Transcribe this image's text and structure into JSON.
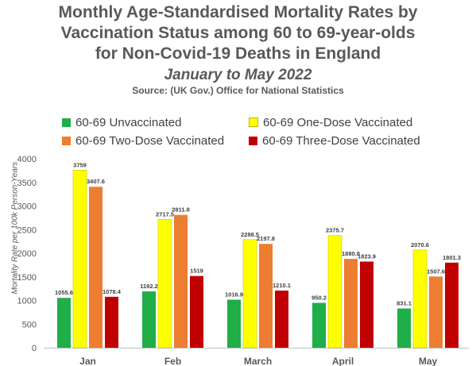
{
  "chart_data": {
    "type": "bar",
    "title_lines": [
      "Monthly Age-Standardised Mortality Rates by",
      "Vaccination Status among 60 to 69-year-olds",
      "for Non-Covid-19 Deaths in England"
    ],
    "subtitle": "January to May 2022",
    "source": "Source: (UK Gov.) Office for National Statistics",
    "ylabel": "Mortality Rate per 100k Person-Years",
    "xlabel": "",
    "ylim": [
      0,
      4000
    ],
    "yticks": [
      "0",
      "500",
      "1000",
      "1500",
      "2000",
      "2500",
      "3000",
      "3500",
      "4000"
    ],
    "categories": [
      "Jan",
      "Feb",
      "March",
      "April",
      "May"
    ],
    "series": [
      {
        "name": "60-69 Unvaccinated",
        "color": "#1fae48",
        "values": [
          1055.6,
          1192.2,
          1016.9,
          950.2,
          831.1
        ],
        "labels": [
          "1055.6",
          "1192.2",
          "1016.9",
          "950.2",
          "831.1"
        ]
      },
      {
        "name": "60-69 One-Dose Vaccinated",
        "color": "#ffff00",
        "values": [
          3759,
          2717.5,
          2288.5,
          2375.7,
          2070.6
        ],
        "labels": [
          "3759",
          "2717.5",
          "2288.5",
          "2375.7",
          "2070.6"
        ]
      },
      {
        "name": "60-69 Two-Dose Vaccinated",
        "color": "#ed7d31",
        "values": [
          3407.6,
          2811.8,
          2197.8,
          1880.8,
          1507.6
        ],
        "labels": [
          "3407.6",
          "2811.8",
          "2197.8",
          "1880.8",
          "1507.6"
        ]
      },
      {
        "name": "60-69 Three-Dose Vaccinated",
        "color": "#c00000",
        "values": [
          1078.4,
          1519,
          1210.1,
          1823.9,
          1801.3
        ],
        "labels": [
          "1078.4",
          "1519",
          "1210.1",
          "1823.9",
          "1801.3"
        ]
      }
    ],
    "legend_position": "top",
    "grid": false
  }
}
